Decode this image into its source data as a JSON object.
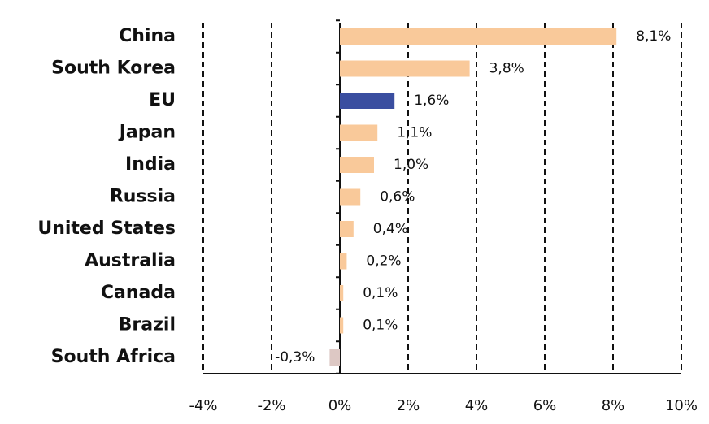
{
  "chart_data": {
    "type": "bar",
    "orientation": "horizontal",
    "categories": [
      "China",
      "South Korea",
      "EU",
      "Japan",
      "India",
      "Russia",
      "United States",
      "Australia",
      "Canada",
      "Brazil",
      "South Africa"
    ],
    "values": [
      8.1,
      3.8,
      1.6,
      1.1,
      1.0,
      0.6,
      0.4,
      0.2,
      0.1,
      0.1,
      -0.3
    ],
    "value_labels": [
      "8,1%",
      "3,8%",
      "1,6%",
      "1,1%",
      "1,0%",
      "0,6%",
      "0,4%",
      "0,2%",
      "0,1%",
      "0,1%",
      "-0,3%"
    ],
    "colors": [
      "#f9c99a",
      "#f9c99a",
      "#3a4ea0",
      "#f9c99a",
      "#f9c99a",
      "#f9c99a",
      "#f9c99a",
      "#f9c99a",
      "#f9c99a",
      "#f9c99a",
      "#ddc8c4"
    ],
    "xlim": [
      -4,
      10
    ],
    "xticks": [
      {
        "value": -4,
        "label": "-4%"
      },
      {
        "value": -2,
        "label": "-2%"
      },
      {
        "value": 0,
        "label": "0%"
      },
      {
        "value": 2,
        "label": "2%"
      },
      {
        "value": 4,
        "label": "4%"
      },
      {
        "value": 6,
        "label": "6%"
      },
      {
        "value": 8,
        "label": "8%"
      },
      {
        "value": 10,
        "label": "10%"
      }
    ],
    "grid": true
  }
}
